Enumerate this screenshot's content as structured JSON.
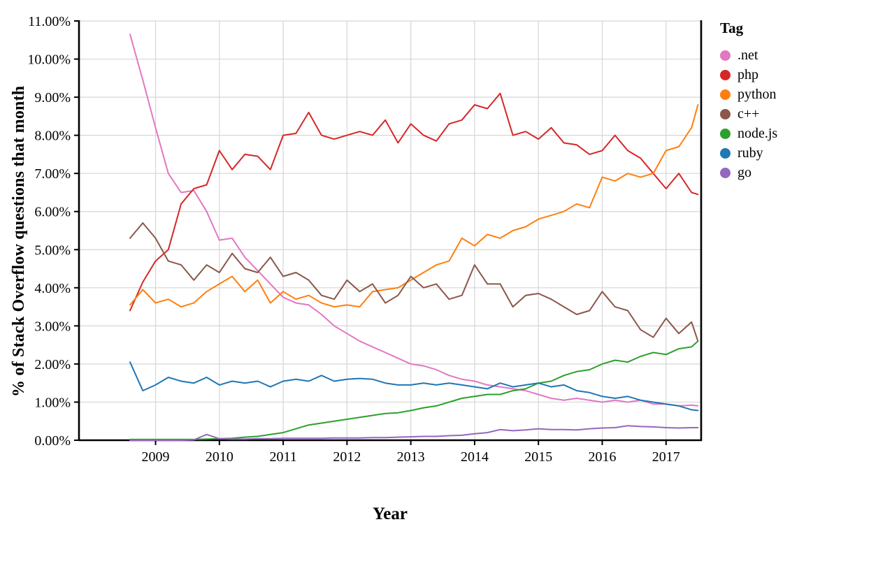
{
  "chart_data": {
    "type": "line",
    "title": "",
    "xlabel": "Year",
    "ylabel": "% of Stack Overflow questions that month",
    "legend_title": "Tag",
    "legend_position": "right",
    "grid": true,
    "grid_color": "#d6d6d6",
    "axis_color": "#000000",
    "background": "#ffffff",
    "xlim": [
      2007.8,
      2017.55
    ],
    "ylim": [
      0,
      11
    ],
    "xticks": [
      2009,
      2010,
      2011,
      2012,
      2013,
      2014,
      2015,
      2016,
      2017
    ],
    "xtick_labels": [
      "2009",
      "2010",
      "2011",
      "2012",
      "2013",
      "2014",
      "2015",
      "2016",
      "2017"
    ],
    "yticks": [
      0,
      1,
      2,
      3,
      4,
      5,
      6,
      7,
      8,
      9,
      10,
      11
    ],
    "ytick_labels": [
      "0.00%",
      "1.00%",
      "2.00%",
      "3.00%",
      "4.00%",
      "5.00%",
      "6.00%",
      "7.00%",
      "8.00%",
      "9.00%",
      "10.00%",
      "11.00%"
    ],
    "x": [
      2008.6,
      2008.8,
      2009.0,
      2009.2,
      2009.4,
      2009.6,
      2009.8,
      2010.0,
      2010.2,
      2010.4,
      2010.6,
      2010.8,
      2011.0,
      2011.2,
      2011.4,
      2011.6,
      2011.8,
      2012.0,
      2012.2,
      2012.4,
      2012.6,
      2012.8,
      2013.0,
      2013.2,
      2013.4,
      2013.6,
      2013.8,
      2014.0,
      2014.2,
      2014.4,
      2014.6,
      2014.8,
      2015.0,
      2015.2,
      2015.4,
      2015.6,
      2015.8,
      2016.0,
      2016.2,
      2016.4,
      2016.6,
      2016.8,
      2017.0,
      2017.2,
      2017.4,
      2017.5
    ],
    "series": [
      {
        "name": ".net",
        "color": "#e377c2",
        "values": [
          10.65,
          9.45,
          8.2,
          7.0,
          6.5,
          6.55,
          6.0,
          5.25,
          5.3,
          4.8,
          4.45,
          4.1,
          3.75,
          3.6,
          3.55,
          3.3,
          3.0,
          2.8,
          2.6,
          2.45,
          2.3,
          2.15,
          2.0,
          1.95,
          1.85,
          1.7,
          1.6,
          1.55,
          1.45,
          1.4,
          1.35,
          1.3,
          1.2,
          1.1,
          1.05,
          1.1,
          1.05,
          1.0,
          1.05,
          1.0,
          1.05,
          0.95,
          0.95,
          0.9,
          0.92,
          0.9
        ]
      },
      {
        "name": "php",
        "color": "#d62728",
        "values": [
          3.4,
          4.15,
          4.7,
          5.0,
          6.2,
          6.6,
          6.7,
          7.6,
          7.1,
          7.5,
          7.45,
          7.1,
          8.0,
          8.05,
          8.6,
          8.0,
          7.9,
          8.0,
          8.1,
          8.0,
          8.4,
          7.8,
          8.3,
          8.0,
          7.85,
          8.3,
          8.4,
          8.8,
          8.7,
          9.1,
          8.0,
          8.1,
          7.9,
          8.2,
          7.8,
          7.75,
          7.5,
          7.6,
          8.0,
          7.6,
          7.4,
          7.0,
          6.6,
          7.0,
          6.5,
          6.45
        ]
      },
      {
        "name": "python",
        "color": "#ff7f0e",
        "values": [
          3.55,
          3.95,
          3.6,
          3.7,
          3.5,
          3.6,
          3.9,
          4.1,
          4.3,
          3.9,
          4.2,
          3.6,
          3.9,
          3.7,
          3.8,
          3.6,
          3.5,
          3.55,
          3.5,
          3.9,
          3.95,
          4.0,
          4.2,
          4.4,
          4.6,
          4.7,
          5.3,
          5.1,
          5.4,
          5.3,
          5.5,
          5.6,
          5.8,
          5.9,
          6.0,
          6.2,
          6.1,
          6.9,
          6.8,
          7.0,
          6.9,
          7.0,
          7.6,
          7.7,
          8.2,
          8.8
        ]
      },
      {
        "name": "c++",
        "color": "#8c564b",
        "values": [
          5.3,
          5.7,
          5.3,
          4.7,
          4.6,
          4.2,
          4.6,
          4.4,
          4.9,
          4.5,
          4.4,
          4.8,
          4.3,
          4.4,
          4.2,
          3.8,
          3.7,
          4.2,
          3.9,
          4.1,
          3.6,
          3.8,
          4.3,
          4.0,
          4.1,
          3.7,
          3.8,
          4.6,
          4.1,
          4.1,
          3.5,
          3.8,
          3.85,
          3.7,
          3.5,
          3.3,
          3.4,
          3.9,
          3.5,
          3.4,
          2.9,
          2.7,
          3.2,
          2.8,
          3.1,
          2.6
        ]
      },
      {
        "name": "node.js",
        "color": "#2ca02c",
        "values": [
          0.02,
          0.02,
          0.02,
          0.02,
          0.02,
          0.02,
          0.03,
          0.04,
          0.05,
          0.08,
          0.1,
          0.15,
          0.2,
          0.3,
          0.4,
          0.45,
          0.5,
          0.55,
          0.6,
          0.65,
          0.7,
          0.72,
          0.78,
          0.85,
          0.9,
          1.0,
          1.1,
          1.15,
          1.2,
          1.2,
          1.3,
          1.35,
          1.5,
          1.55,
          1.7,
          1.8,
          1.85,
          2.0,
          2.1,
          2.05,
          2.2,
          2.3,
          2.25,
          2.4,
          2.45,
          2.6
        ]
      },
      {
        "name": "ruby",
        "color": "#1f77b4",
        "values": [
          2.05,
          1.3,
          1.45,
          1.65,
          1.55,
          1.5,
          1.65,
          1.45,
          1.55,
          1.5,
          1.55,
          1.4,
          1.55,
          1.6,
          1.55,
          1.7,
          1.55,
          1.6,
          1.62,
          1.6,
          1.5,
          1.45,
          1.45,
          1.5,
          1.45,
          1.5,
          1.45,
          1.4,
          1.35,
          1.5,
          1.4,
          1.45,
          1.5,
          1.4,
          1.45,
          1.3,
          1.25,
          1.15,
          1.1,
          1.15,
          1.05,
          1.0,
          0.95,
          0.9,
          0.8,
          0.78
        ]
      },
      {
        "name": "go",
        "color": "#9467bd",
        "values": [
          0.0,
          0.0,
          0.0,
          0.0,
          0.0,
          0.01,
          0.15,
          0.04,
          0.03,
          0.03,
          0.04,
          0.04,
          0.05,
          0.05,
          0.05,
          0.05,
          0.06,
          0.06,
          0.06,
          0.07,
          0.07,
          0.08,
          0.09,
          0.1,
          0.1,
          0.12,
          0.13,
          0.17,
          0.2,
          0.28,
          0.25,
          0.27,
          0.3,
          0.28,
          0.28,
          0.27,
          0.3,
          0.32,
          0.33,
          0.38,
          0.36,
          0.35,
          0.33,
          0.32,
          0.33,
          0.33
        ]
      }
    ]
  }
}
